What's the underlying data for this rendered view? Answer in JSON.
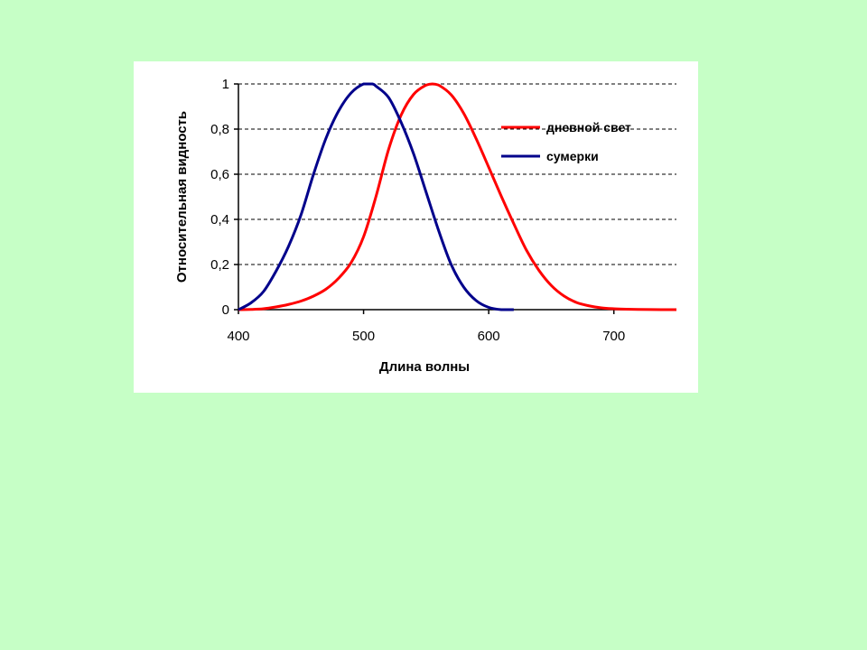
{
  "background_color": "#c6ffc6",
  "chart_data": {
    "type": "line",
    "title": "",
    "xlabel": "Длина волны",
    "ylabel": "Относительная видность",
    "xlim": [
      400,
      750
    ],
    "ylim": [
      0,
      1
    ],
    "x_ticks": [
      400,
      500,
      600,
      700
    ],
    "x_tick_labels": [
      "400",
      "500",
      "600",
      "700"
    ],
    "y_ticks": [
      0,
      0.2,
      0.4,
      0.6,
      0.8,
      1
    ],
    "y_tick_labels": [
      "0",
      "0,2",
      "0,4",
      "0,6",
      "0,8",
      "1"
    ],
    "grid": "horizontal dashed",
    "legend_position": "top-right",
    "series": [
      {
        "name": "дневной свет",
        "color": "#ff0000",
        "x": [
          400,
          410,
          420,
          430,
          440,
          450,
          460,
          470,
          480,
          490,
          500,
          510,
          520,
          530,
          540,
          550,
          555,
          560,
          570,
          580,
          590,
          600,
          610,
          620,
          630,
          640,
          650,
          660,
          670,
          680,
          690,
          700,
          710,
          720,
          730,
          740,
          750
        ],
        "values": [
          0.0,
          0.001,
          0.004,
          0.012,
          0.023,
          0.038,
          0.06,
          0.091,
          0.139,
          0.208,
          0.323,
          0.503,
          0.71,
          0.862,
          0.954,
          0.995,
          1.0,
          0.995,
          0.952,
          0.87,
          0.757,
          0.631,
          0.503,
          0.381,
          0.265,
          0.175,
          0.107,
          0.061,
          0.032,
          0.017,
          0.008,
          0.004,
          0.002,
          0.001,
          0.0005,
          0.0002,
          0.0001
        ]
      },
      {
        "name": "сумерки",
        "color": "#00008b",
        "x": [
          400,
          410,
          420,
          430,
          440,
          450,
          460,
          470,
          480,
          490,
          500,
          507,
          510,
          520,
          530,
          540,
          550,
          560,
          570,
          580,
          590,
          600,
          610,
          620
        ],
        "values": [
          0.0,
          0.03,
          0.08,
          0.17,
          0.28,
          0.42,
          0.6,
          0.76,
          0.88,
          0.96,
          1.0,
          1.0,
          0.99,
          0.94,
          0.83,
          0.69,
          0.52,
          0.35,
          0.2,
          0.1,
          0.04,
          0.01,
          0.0,
          0.0
        ]
      }
    ]
  }
}
